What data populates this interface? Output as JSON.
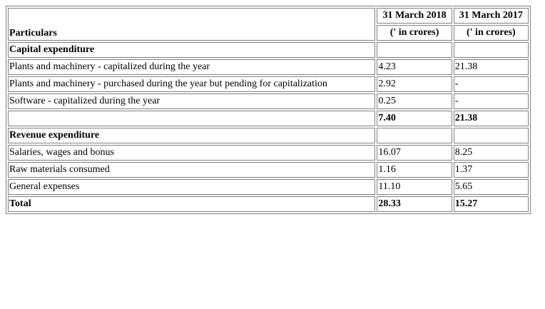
{
  "header": {
    "particulars": "Particulars",
    "col1_date": "31 March 2018",
    "col2_date": "31 March 2017",
    "col1_unit": "(' in crores)",
    "col2_unit": "(' in crores)"
  },
  "capital": {
    "heading": "Capital expenditure",
    "rows": [
      {
        "label": "Plants and machinery - capitalized during the year",
        "y2018": "4.23",
        "y2017": "21.38"
      },
      {
        "label": "Plants and machinery - purchased during the year but pending for capitalization",
        "y2018": "2.92",
        "y2017": "-"
      },
      {
        "label": "Software - capitalized during the year",
        "y2018": "0.25",
        "y2017": "-"
      }
    ],
    "subtotal": {
      "label": "",
      "y2018": "7.40",
      "y2017": "21.38"
    }
  },
  "revenue": {
    "heading": "Revenue expenditure",
    "rows": [
      {
        "label": "Salaries, wages and bonus",
        "y2018": "16.07",
        "y2017": "8.25"
      },
      {
        "label": "Raw materials consumed",
        "y2018": "1.16",
        "y2017": "1.37"
      },
      {
        "label": "General expenses",
        "y2018": "11.10",
        "y2017": "5.65"
      }
    ]
  },
  "total": {
    "label": "Total",
    "y2018": "28.33",
    "y2017": "15.27"
  }
}
